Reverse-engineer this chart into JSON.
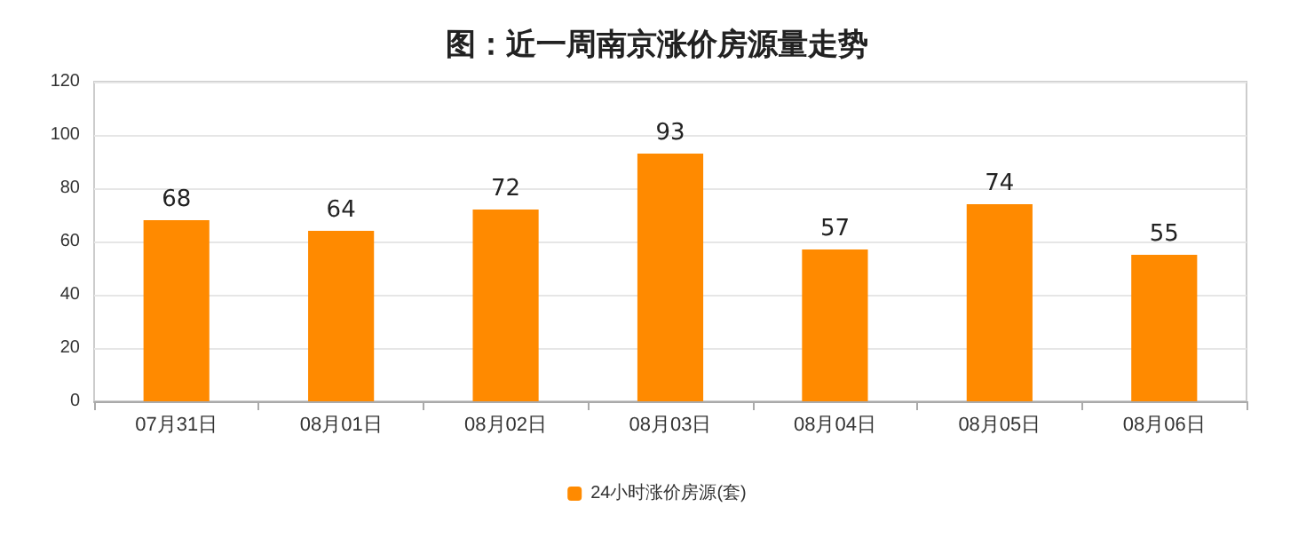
{
  "chart_data": {
    "type": "bar",
    "title": "图：近一周南京涨价房源量走势",
    "categories": [
      "07月31日",
      "08月01日",
      "08月02日",
      "08月03日",
      "08月04日",
      "08月05日",
      "08月06日"
    ],
    "series": [
      {
        "name": "24小时涨价房源(套)",
        "color": "#ff8a00",
        "values": [
          68,
          64,
          72,
          93,
          57,
          74,
          55
        ]
      }
    ],
    "ylim": [
      0,
      120
    ],
    "yticks": [
      0,
      20,
      40,
      60,
      80,
      100,
      120
    ],
    "grid": "y",
    "legend": "bottom",
    "data_labels": true
  }
}
